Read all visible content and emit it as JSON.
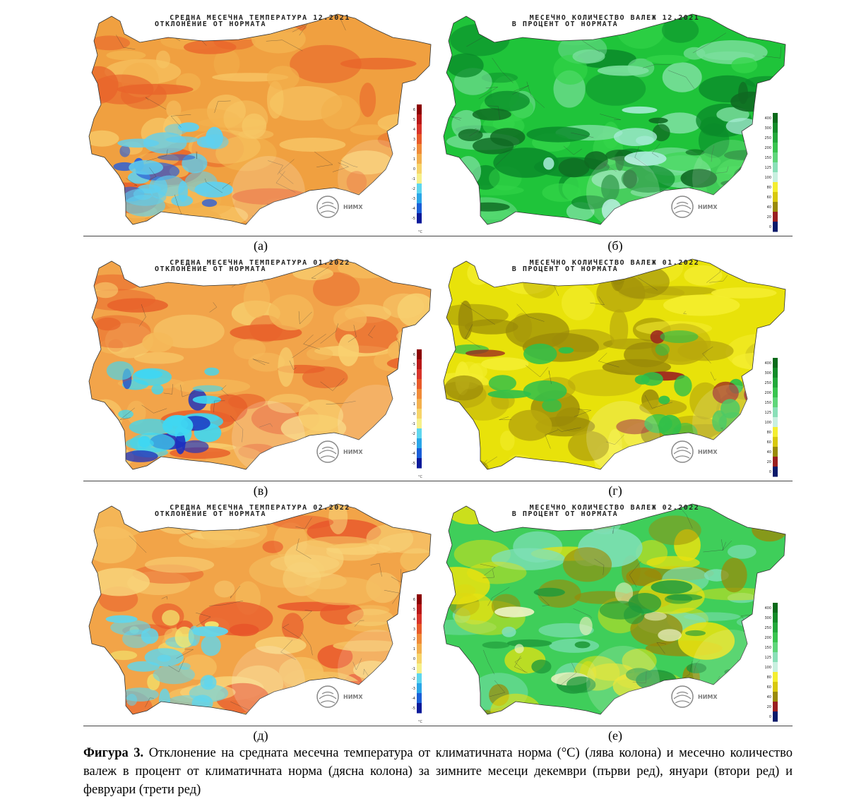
{
  "panels": [
    {
      "id": "a",
      "title1": "СРЕДНА МЕСЕЧНА ТЕМПЕРАТУРА  12.2021",
      "title2": "ОТКЛОНЕНИЕ ОТ НОРМАТА",
      "label": "(а)",
      "kind": "temp",
      "scheme": [
        "#f0a040",
        "#f3b24e",
        "#e8632a",
        "#f7c766"
      ],
      "patch": "#5fd0ef",
      "patch2": "#2a5fd8"
    },
    {
      "id": "b",
      "title1": "МЕСЕЧНО КОЛИЧЕСТВО ВАЛЕЖ  12.2021",
      "title2": "В ПРОЦЕНТ ОТ НОРМАТА",
      "label": "(б)",
      "kind": "precip",
      "scheme": [
        "#1fc43a",
        "#34d64a",
        "#0a8a2a",
        "#7ee0a0"
      ],
      "patch": "#0f6a22",
      "patch2": "#a8ecd8"
    },
    {
      "id": "v",
      "title1": "СРЕДНА МЕСЕЧНА ТЕМПЕРАТУРА  01.2022",
      "title2": "ОТКЛОНЕНИЕ ОТ НОРМАТА",
      "label": "(в)",
      "kind": "temp",
      "scheme": [
        "#f2a44a",
        "#f5b95a",
        "#e8612a",
        "#f8d070"
      ],
      "patch": "#3fd7f2",
      "patch2": "#1a2fc0"
    },
    {
      "id": "g",
      "title1": "МЕСЕЧНО КОЛИЧЕСТВО ВАЛЕЖ  01.2022",
      "title2": "В ПРОЦЕНТ ОТ НОРМАТА",
      "label": "(г)",
      "kind": "precip",
      "scheme": [
        "#e8e20a",
        "#9a8a08",
        "#f4ee30",
        "#b8a80c"
      ],
      "patch": "#2fc04a",
      "patch2": "#9a1f20"
    },
    {
      "id": "d",
      "title1": "СРЕДНА МЕСЕЧНА ТЕМПЕРАТУРА  02.2022",
      "title2": "ОТКЛОНЕНИЕ ОТ НОРМАТА",
      "label": "(д)",
      "kind": "temp",
      "scheme": [
        "#f2a448",
        "#f5c060",
        "#e8542a",
        "#f8d47a"
      ],
      "patch": "#5fd6ee",
      "patch2": "#f2e870"
    },
    {
      "id": "e",
      "title1": "МЕСЕЧНО КОЛИЧЕСТВО ВАЛЕЖ  02.2022",
      "title2": "В ПРОЦЕНТ ОТ НОРМАТА",
      "label": "(е)",
      "kind": "precip",
      "scheme": [
        "#3fce5a",
        "#e8e210",
        "#7fe0b8",
        "#9a8a08"
      ],
      "patch": "#1f9a3a",
      "patch2": "#eaf2c0"
    }
  ],
  "legend": {
    "temp_ticks": [
      "6",
      "5",
      "4",
      "3",
      "2",
      "1",
      "0",
      "-1",
      "-2",
      "-3",
      "-4",
      "-5"
    ],
    "temp_unit": "°C",
    "precip_ticks": [
      "400",
      "300",
      "250",
      "200",
      "150",
      "125",
      "100",
      "80",
      "60",
      "40",
      "20",
      "0"
    ],
    "temp_colors": [
      "#8b0000",
      "#b81818",
      "#d8342a",
      "#e85a2a",
      "#f08a38",
      "#f3b04e",
      "#f7d46a",
      "#f6f08a",
      "#5fd6ee",
      "#2aa6e8",
      "#1a5fd8",
      "#0a1a9a"
    ],
    "precip_colors": [
      "#0a6a1a",
      "#138a28",
      "#22a83a",
      "#38c44e",
      "#5fd67a",
      "#8ae0b8",
      "#c8f0e0",
      "#f4ee30",
      "#d8c80c",
      "#9a8a08",
      "#9a1f20",
      "#0a1a6a"
    ]
  },
  "watermark": {
    "logo_text": "НИМХ"
  },
  "caption": {
    "bold": "Фигура 3.",
    "text": " Отклонение на средната месечна температура от климатичната норма (°C) (лява колона) и месечно количество валеж в процент от климатичната норма (дясна колона) за зимните месеци декември (първи ред), януари (втори ред) и февруари (трети ред)"
  }
}
